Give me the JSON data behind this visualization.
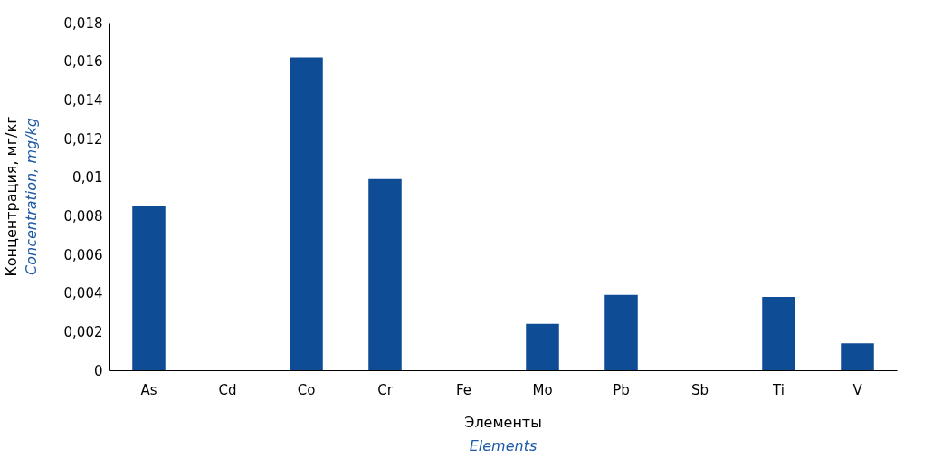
{
  "chart_data": {
    "type": "bar",
    "xlabel": "Элементы\nElements",
    "ylabel": "Концентрация, мг/кг\nConcentration, mg/kg",
    "categories": [
      "As",
      "Cd",
      "Co",
      "Cr",
      "Fe",
      "Mo",
      "Pb",
      "Sb",
      "Ti",
      "V"
    ],
    "values": [
      0.0085,
      0,
      0.0162,
      0.0099,
      0,
      0.0024,
      0.0039,
      0,
      0.0038,
      0.0014
    ],
    "color": "#0f4c96",
    "ylim": [
      0,
      0.018
    ],
    "yticks": [
      0,
      {
        "value": 0.002,
        "label": "0,002"
      },
      {
        "value": 0.004,
        "label": "0,004"
      },
      {
        "value": 0.006,
        "label": "0,006"
      },
      {
        "value": 0.008,
        "label": "0,008"
      },
      {
        "value": 0.01,
        "label": "0,01"
      },
      {
        "value": 0.012,
        "label": "0,012"
      },
      {
        "value": 0.014,
        "label": "0,014"
      },
      {
        "value": 0.016,
        "label": "0,016"
      },
      {
        "value": 0.018,
        "label": "0,018"
      }
    ],
    "grid": false
  }
}
